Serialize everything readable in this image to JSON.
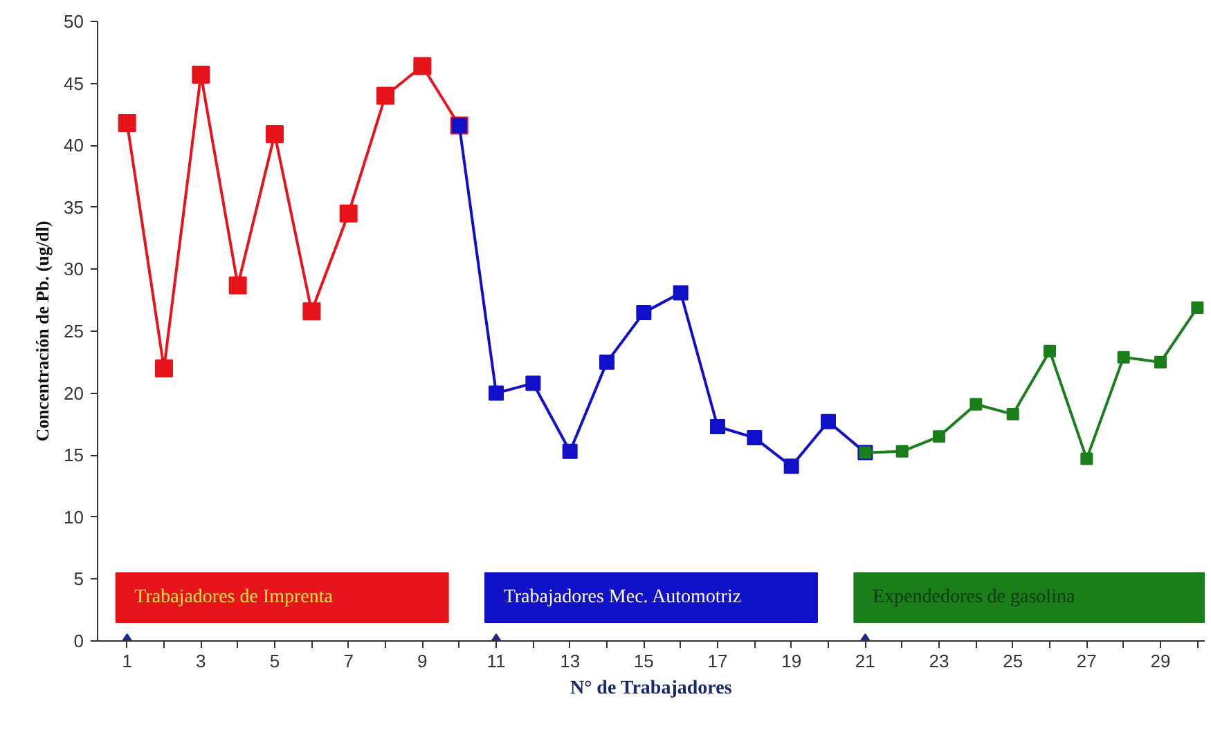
{
  "chart_data": {
    "type": "line",
    "xlabel": "N° de Trabajadores",
    "ylabel": "Concentración de Pb. (ug/dl)",
    "xlim": [
      0.2,
      30.2
    ],
    "ylim": [
      0,
      50
    ],
    "xticks": [
      1,
      {
        "value": 2,
        "label": null
      },
      3,
      {
        "value": 4,
        "label": null
      },
      5,
      {
        "value": 6,
        "label": null
      },
      7,
      {
        "value": 8,
        "label": null
      },
      9,
      {
        "value": 10,
        "label": null
      },
      11,
      {
        "value": 12,
        "label": null
      },
      13,
      {
        "value": 14,
        "label": null
      },
      15,
      {
        "value": 16,
        "label": null
      },
      17,
      {
        "value": 18,
        "label": null
      },
      19,
      {
        "value": 20,
        "label": null
      },
      21,
      {
        "value": 22,
        "label": null
      },
      23,
      {
        "value": 24,
        "label": null
      },
      25,
      {
        "value": 26,
        "label": null
      },
      27,
      {
        "value": 28,
        "label": null
      },
      29,
      {
        "value": 30,
        "label": null
      }
    ],
    "yticks": [
      0,
      5,
      10,
      15,
      20,
      25,
      30,
      35,
      40,
      45,
      50
    ],
    "grid": false,
    "legend": "bottom",
    "marker": "square",
    "line_style": "solid",
    "series": [
      {
        "name": "Trabajadores de Imprenta",
        "color": "#e8141b",
        "x": [
          1,
          2,
          3,
          4,
          5,
          6,
          7,
          8,
          9,
          10
        ],
        "values": [
          41.8,
          22,
          45.7,
          28.7,
          40.9,
          26.6,
          34.5,
          44,
          46.4,
          41.6
        ]
      },
      {
        "name": "Trabajadores  Mec. Automotriz",
        "color": "#1010c8",
        "x": [
          10,
          11,
          12,
          13,
          14,
          15,
          16,
          17,
          18,
          19,
          20,
          21
        ],
        "values": [
          41.6,
          20,
          20.8,
          15.3,
          22.5,
          26.5,
          28.1,
          17.3,
          16.4,
          14.1,
          17.7,
          15.2
        ]
      },
      {
        "name": "Expendedores de gasolina",
        "color": "#1a7f1a",
        "x": [
          21,
          22,
          23,
          24,
          25,
          26,
          27,
          28,
          29,
          30
        ],
        "values": [
          15.2,
          15.3,
          16.5,
          19.1,
          18.3,
          23.4,
          14.7,
          22.9,
          22.5,
          26.9
        ]
      },
      {
        "type": "scatter",
        "marker": "diamond",
        "color": "#1a2a8a",
        "x": [
          1,
          11,
          21
        ],
        "values": [
          0,
          0,
          0
        ]
      }
    ]
  }
}
